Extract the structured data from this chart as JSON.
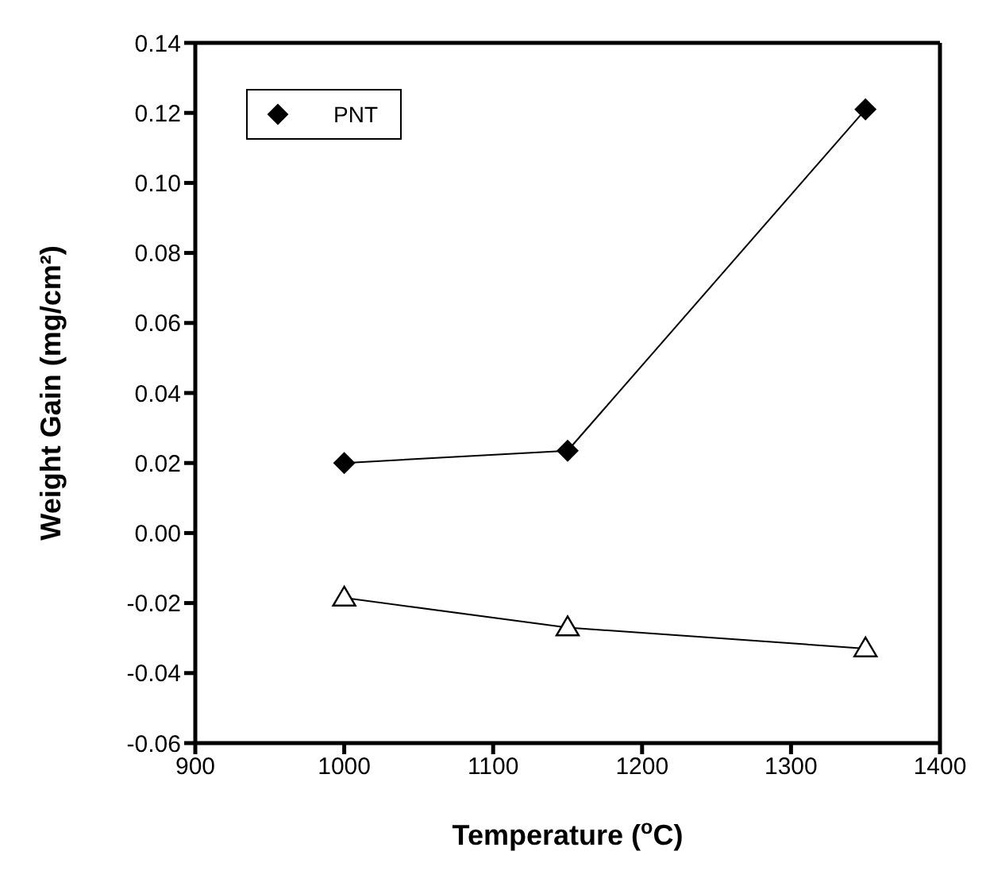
{
  "chart_data": {
    "type": "line",
    "xlabel": "Temperature ($^{o}$C)",
    "ylabel": "Weight Gain (mg/cm²)",
    "x": [
      1000,
      1150,
      1350
    ],
    "series": [
      {
        "color": "#000000",
        "marker": "triangle",
        "values": [
          -0.0185,
          -0.027,
          -0.033
        ]
      },
      {
        "name": "PNT",
        "color": "#000000",
        "marker": "diamond",
        "values": [
          0.02,
          0.0235,
          0.121
        ]
      }
    ],
    "xlim": [
      900,
      1400
    ],
    "xticks": [
      900,
      1000,
      1100,
      1200,
      1300,
      1400
    ],
    "ylim": [
      -0.06,
      0.14
    ],
    "yticks": [
      -0.06,
      -0.04,
      -0.02,
      {
        "value": 0,
        "label": "0.00"
      },
      0.02,
      0.04,
      0.06,
      0.08,
      {
        "value": 0.1,
        "label": "0.10"
      },
      0.12,
      0.14
    ],
    "legend": "top left"
  }
}
